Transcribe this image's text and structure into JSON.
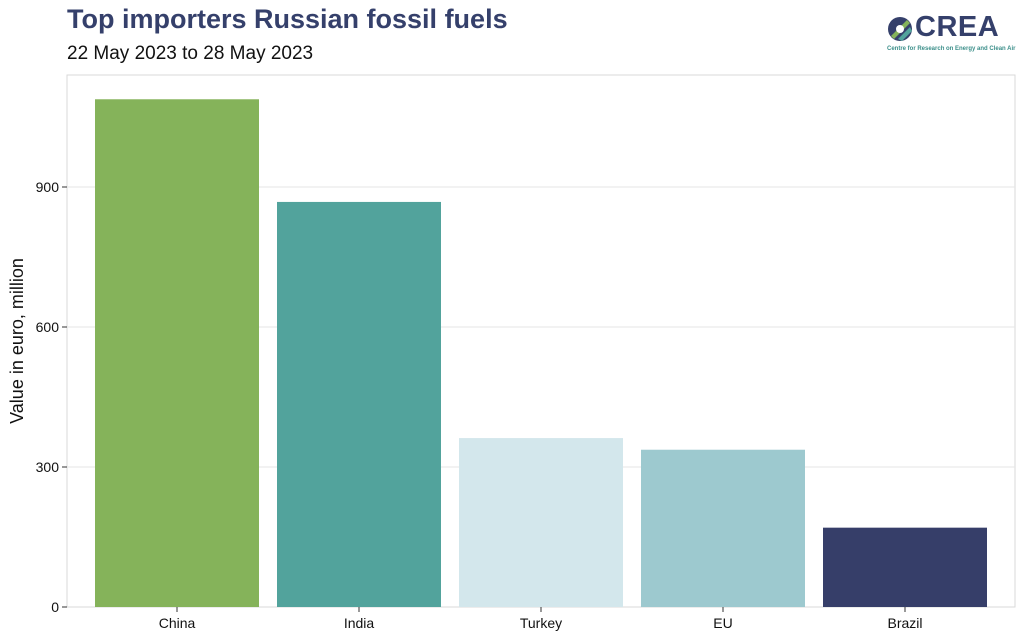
{
  "header": {
    "title": "Top importers Russian fossil fuels",
    "subtitle": "22 May 2023 to 28 May 2023"
  },
  "logo": {
    "name": "CREA",
    "tagline": "Centre for Research on Energy and Clean Air",
    "icon": "crea-leaf-icon",
    "colors": [
      "#35406b",
      "#85b35a",
      "#52a39c"
    ]
  },
  "chart_data": {
    "type": "bar",
    "title": "Top importers Russian fossil fuels",
    "subtitle": "22 May 2023 to 28 May 2023",
    "xlabel": "",
    "ylabel": "Value in euro, million",
    "categories": [
      "China",
      "India",
      "Turkey",
      "EU",
      "Brazil"
    ],
    "values": [
      1088,
      868,
      362,
      337,
      170
    ],
    "colors": [
      "#85b35a",
      "#52a39c",
      "#d3e7ec",
      "#9dc9cf",
      "#363e69"
    ],
    "ylim": [
      0,
      1140
    ],
    "yticks": [
      0,
      300,
      600,
      900
    ],
    "ytick_labels": [
      "0",
      "300",
      "600",
      "900"
    ],
    "grid": "horizontal",
    "legend": "none"
  }
}
